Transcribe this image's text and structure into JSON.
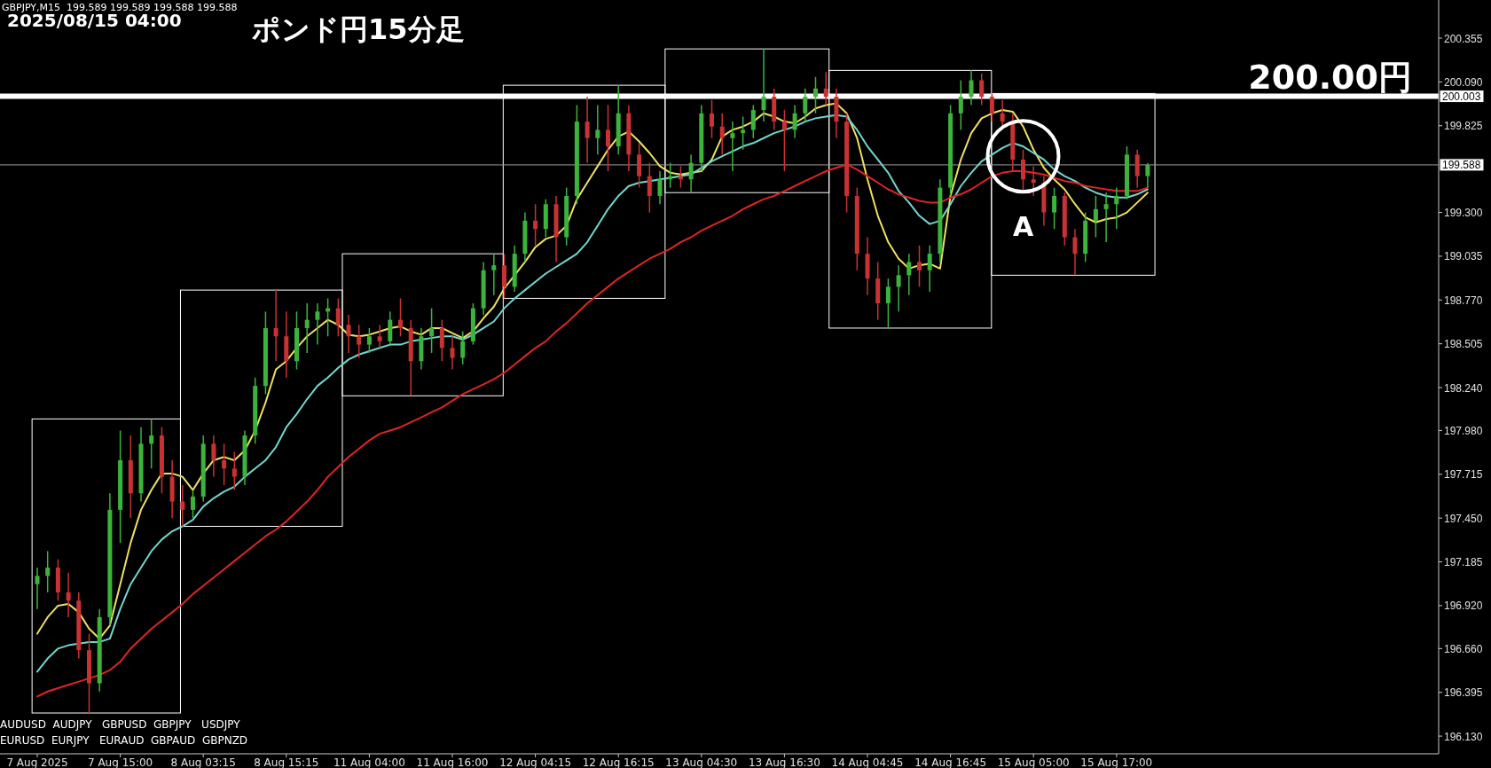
{
  "chart_data": {
    "type": "candlestick",
    "title": "ポンド円15分足",
    "categories": [
      "7 Aug 2025",
      null,
      null,
      null,
      null,
      null,
      null,
      null,
      "7 Aug 15:00",
      null,
      null,
      null,
      null,
      null,
      null,
      null,
      "8 Aug 03:15",
      null,
      null,
      null,
      null,
      null,
      null,
      null,
      "8 Aug 15:15",
      null,
      null,
      null,
      null,
      null,
      null,
      null,
      "11 Aug 04:00",
      null,
      null,
      null,
      null,
      null,
      null,
      null,
      "11 Aug 16:00",
      null,
      null,
      null,
      null,
      null,
      null,
      null,
      "12 Aug 04:15",
      null,
      null,
      null,
      null,
      null,
      null,
      null,
      "12 Aug 16:15",
      null,
      null,
      null,
      null,
      null,
      null,
      null,
      "13 Aug 04:30",
      null,
      null,
      null,
      null,
      null,
      null,
      null,
      "13 Aug 16:30",
      null,
      null,
      null,
      null,
      null,
      null,
      null,
      "14 Aug 04:45",
      null,
      null,
      null,
      null,
      null,
      null,
      null,
      "14 Aug 16:45",
      null,
      null,
      null,
      null,
      null,
      null,
      null,
      "15 Aug 05:00",
      null,
      null,
      null,
      null,
      null,
      null,
      null,
      "15 Aug 17:00",
      null,
      null,
      null
    ],
    "ohlc": [
      [
        197.05,
        197.15,
        196.9,
        197.1
      ],
      [
        197.1,
        197.25,
        197.0,
        197.15
      ],
      [
        197.15,
        197.2,
        196.95,
        197.0
      ],
      [
        197.0,
        197.12,
        196.85,
        196.95
      ],
      [
        196.95,
        197.0,
        196.6,
        196.65
      ],
      [
        196.65,
        196.75,
        196.27,
        196.45
      ],
      [
        196.45,
        196.9,
        196.4,
        196.85
      ],
      [
        196.85,
        197.6,
        196.8,
        197.5
      ],
      [
        197.5,
        197.98,
        197.3,
        197.8
      ],
      [
        197.8,
        197.95,
        197.45,
        197.6
      ],
      [
        197.6,
        198.0,
        197.55,
        197.9
      ],
      [
        197.9,
        198.05,
        197.75,
        197.95
      ],
      [
        197.95,
        198.0,
        197.6,
        197.7
      ],
      [
        197.7,
        197.8,
        197.45,
        197.55
      ],
      [
        197.55,
        197.65,
        197.4,
        197.5
      ],
      [
        197.5,
        197.62,
        197.45,
        197.58
      ],
      [
        197.58,
        197.95,
        197.55,
        197.9
      ],
      [
        197.9,
        197.95,
        197.7,
        197.8
      ],
      [
        197.8,
        197.9,
        197.65,
        197.75
      ],
      [
        197.75,
        197.85,
        197.62,
        197.7
      ],
      [
        197.7,
        197.98,
        197.65,
        197.95
      ],
      [
        197.95,
        198.3,
        197.9,
        198.25
      ],
      [
        198.25,
        198.7,
        198.2,
        198.6
      ],
      [
        198.6,
        198.83,
        198.4,
        198.55
      ],
      [
        198.55,
        198.7,
        198.3,
        198.4
      ],
      [
        198.4,
        198.7,
        198.35,
        198.6
      ],
      [
        198.6,
        198.75,
        198.45,
        198.65
      ],
      [
        198.65,
        198.75,
        198.5,
        198.7
      ],
      [
        198.7,
        198.78,
        198.55,
        198.72
      ],
      [
        198.72,
        198.78,
        198.55,
        198.62
      ],
      [
        198.62,
        198.68,
        198.45,
        198.55
      ],
      [
        198.55,
        198.62,
        198.42,
        198.5
      ],
      [
        198.5,
        198.6,
        198.45,
        198.55
      ],
      [
        198.55,
        198.62,
        198.48,
        198.52
      ],
      [
        198.52,
        198.7,
        198.5,
        198.65
      ],
      [
        198.65,
        198.78,
        198.55,
        198.6
      ],
      [
        198.6,
        198.65,
        198.19,
        198.4
      ],
      [
        198.4,
        198.6,
        198.35,
        198.55
      ],
      [
        198.55,
        198.72,
        198.45,
        198.6
      ],
      [
        198.6,
        198.65,
        198.4,
        198.48
      ],
      [
        198.48,
        198.55,
        198.35,
        198.42
      ],
      [
        198.42,
        198.58,
        198.38,
        198.52
      ],
      [
        198.52,
        198.75,
        198.5,
        198.72
      ],
      [
        198.72,
        199.0,
        198.68,
        198.95
      ],
      [
        198.95,
        199.05,
        198.8,
        198.98
      ],
      [
        198.98,
        199.05,
        198.78,
        198.85
      ],
      [
        198.85,
        199.1,
        198.82,
        199.05
      ],
      [
        199.05,
        199.3,
        199.0,
        199.25
      ],
      [
        199.25,
        199.35,
        199.1,
        199.2
      ],
      [
        199.2,
        199.38,
        199.15,
        199.35
      ],
      [
        199.35,
        199.4,
        199.0,
        199.15
      ],
      [
        199.15,
        199.45,
        199.1,
        199.4
      ],
      [
        199.4,
        199.95,
        199.35,
        199.85
      ],
      [
        199.85,
        200.0,
        199.6,
        199.75
      ],
      [
        199.75,
        199.95,
        199.65,
        199.8
      ],
      [
        199.8,
        199.95,
        199.55,
        199.7
      ],
      [
        199.7,
        200.07,
        199.65,
        199.9
      ],
      [
        199.9,
        199.95,
        199.55,
        199.65
      ],
      [
        199.65,
        199.72,
        199.45,
        199.52
      ],
      [
        199.52,
        199.6,
        199.3,
        199.4
      ],
      [
        199.4,
        199.55,
        199.35,
        199.5
      ],
      [
        199.5,
        199.6,
        199.45,
        199.52
      ],
      [
        199.52,
        199.58,
        199.45,
        199.5
      ],
      [
        199.5,
        199.65,
        199.42,
        199.6
      ],
      [
        199.6,
        199.95,
        199.55,
        199.9
      ],
      [
        199.9,
        199.98,
        199.75,
        199.82
      ],
      [
        199.82,
        199.9,
        199.65,
        199.75
      ],
      [
        199.75,
        199.85,
        199.55,
        199.78
      ],
      [
        199.78,
        199.88,
        199.68,
        199.8
      ],
      [
        199.8,
        199.95,
        199.75,
        199.92
      ],
      [
        199.92,
        200.29,
        199.85,
        200.0
      ],
      [
        200.0,
        200.05,
        199.8,
        199.85
      ],
      [
        199.85,
        199.92,
        199.55,
        199.8
      ],
      [
        199.8,
        199.95,
        199.75,
        199.9
      ],
      [
        199.9,
        200.05,
        199.85,
        200.0
      ],
      [
        200.0,
        200.12,
        199.9,
        200.05
      ],
      [
        200.05,
        200.15,
        199.95,
        200.0
      ],
      [
        200.0,
        200.05,
        199.75,
        199.85
      ],
      [
        199.85,
        199.9,
        199.3,
        199.4
      ],
      [
        199.4,
        199.45,
        198.95,
        199.05
      ],
      [
        199.05,
        199.15,
        198.8,
        198.9
      ],
      [
        198.9,
        199.0,
        198.65,
        198.75
      ],
      [
        198.75,
        198.9,
        198.6,
        198.85
      ],
      [
        198.85,
        198.98,
        198.7,
        198.92
      ],
      [
        198.92,
        199.05,
        198.8,
        199.0
      ],
      [
        199.0,
        199.1,
        198.85,
        198.95
      ],
      [
        198.95,
        199.1,
        198.82,
        199.05
      ],
      [
        199.05,
        199.5,
        199.0,
        199.45
      ],
      [
        199.45,
        199.95,
        199.4,
        199.9
      ],
      [
        199.9,
        200.1,
        199.8,
        200.0
      ],
      [
        200.0,
        200.16,
        199.95,
        200.1
      ],
      [
        200.1,
        200.14,
        199.95,
        200.0
      ],
      [
        200.0,
        200.02,
        199.85,
        199.9
      ],
      [
        199.9,
        199.98,
        199.8,
        199.85
      ],
      [
        199.85,
        199.9,
        199.55,
        199.62
      ],
      [
        199.62,
        199.68,
        199.42,
        199.5
      ],
      [
        199.5,
        199.58,
        199.4,
        199.48
      ],
      [
        199.48,
        199.52,
        199.22,
        199.3
      ],
      [
        199.3,
        199.45,
        199.2,
        199.4
      ],
      [
        199.4,
        199.42,
        199.1,
        199.15
      ],
      [
        199.15,
        199.2,
        198.92,
        199.05
      ],
      [
        199.05,
        199.3,
        199.0,
        199.25
      ],
      [
        199.25,
        199.4,
        199.15,
        199.32
      ],
      [
        199.32,
        199.42,
        199.12,
        199.35
      ],
      [
        199.35,
        199.45,
        199.2,
        199.4
      ],
      [
        199.4,
        199.7,
        199.38,
        199.65
      ],
      [
        199.65,
        199.68,
        199.45,
        199.52
      ],
      [
        199.52,
        199.6,
        199.45,
        199.588
      ]
    ],
    "colors": [
      "#3cb43c",
      "#3cb43c",
      "#c83232",
      "#c83232",
      "#c83232",
      "#c83232",
      "#3cb43c",
      "#3cb43c",
      "#3cb43c",
      "#c83232",
      "#3cb43c",
      "#3cb43c",
      "#c83232",
      "#c83232",
      "#c83232",
      "#3cb43c",
      "#3cb43c",
      "#c83232",
      "#c83232",
      "#c83232",
      "#3cb43c",
      "#3cb43c",
      "#3cb43c",
      "#c83232",
      "#c83232",
      "#3cb43c",
      "#3cb43c",
      "#3cb43c",
      "#3cb43c",
      "#c83232",
      "#c83232",
      "#c83232",
      "#3cb43c",
      "#c83232",
      "#3cb43c",
      "#c83232",
      "#c83232",
      "#3cb43c",
      "#3cb43c",
      "#c83232",
      "#c83232",
      "#3cb43c",
      "#3cb43c",
      "#3cb43c",
      "#3cb43c",
      "#c83232",
      "#3cb43c",
      "#3cb43c",
      "#c83232",
      "#3cb43c",
      "#c83232",
      "#3cb43c",
      "#3cb43c",
      "#c83232",
      "#3cb43c",
      "#c83232",
      "#3cb43c",
      "#c83232",
      "#c83232",
      "#c83232",
      "#3cb43c",
      "#3cb43c",
      "#c83232",
      "#3cb43c",
      "#3cb43c",
      "#c83232",
      "#c83232",
      "#3cb43c",
      "#3cb43c",
      "#3cb43c",
      "#3cb43c",
      "#c83232",
      "#c83232",
      "#3cb43c",
      "#3cb43c",
      "#3cb43c",
      "#c83232",
      "#c83232",
      "#c83232",
      "#c83232",
      "#c83232",
      "#c83232",
      "#3cb43c",
      "#3cb43c",
      "#3cb43c",
      "#c83232",
      "#3cb43c",
      "#3cb43c",
      "#3cb43c",
      "#3cb43c",
      "#3cb43c",
      "#c83232",
      "#c83232",
      "#c83232",
      "#c83232",
      "#c83232",
      "#c83232",
      "#c83232",
      "#3cb43c",
      "#c83232",
      "#c83232",
      "#3cb43c",
      "#3cb43c",
      "#3cb43c",
      "#3cb43c",
      "#3cb43c",
      "#c83232",
      "#3cb43c"
    ],
    "series": [
      {
        "type": "line",
        "color": "#f0e060",
        "values": [
          196.75,
          196.85,
          196.92,
          196.93,
          196.88,
          196.78,
          196.72,
          196.8,
          197.05,
          197.3,
          197.5,
          197.62,
          197.72,
          197.72,
          197.7,
          197.62,
          197.72,
          197.8,
          197.82,
          197.8,
          197.86,
          197.98,
          198.15,
          198.35,
          198.4,
          198.48,
          198.55,
          198.6,
          198.65,
          198.62,
          198.56,
          198.55,
          198.56,
          198.58,
          198.6,
          198.61,
          198.58,
          198.56,
          198.6,
          198.6,
          198.57,
          198.54,
          198.58,
          198.66,
          198.73,
          198.84,
          198.92,
          199.0,
          199.09,
          199.14,
          199.16,
          199.22,
          199.38,
          199.48,
          199.58,
          199.68,
          199.76,
          199.79,
          199.73,
          199.66,
          199.58,
          199.54,
          199.53,
          199.54,
          199.55,
          199.62,
          199.76,
          199.8,
          199.82,
          199.85,
          199.9,
          199.88,
          199.85,
          199.84,
          199.88,
          199.93,
          199.95,
          199.96,
          199.9,
          199.75,
          199.5,
          199.28,
          199.12,
          199.02,
          198.96,
          198.98,
          198.99,
          198.96,
          199.4,
          199.62,
          199.78,
          199.87,
          199.9,
          199.92,
          199.91,
          199.82,
          199.68,
          199.57,
          199.5,
          199.44,
          199.35,
          199.27,
          199.24,
          199.26,
          199.27,
          199.3,
          199.36,
          199.42
        ]
      },
      {
        "type": "line",
        "color": "#70d8d0",
        "values": [
          196.52,
          196.6,
          196.66,
          196.68,
          196.69,
          196.7,
          196.7,
          196.72,
          196.9,
          197.05,
          197.15,
          197.25,
          197.32,
          197.37,
          197.4,
          197.44,
          197.52,
          197.57,
          197.61,
          197.64,
          197.7,
          197.75,
          197.8,
          197.88,
          198.0,
          198.08,
          198.17,
          198.25,
          198.3,
          198.36,
          198.41,
          198.44,
          198.46,
          198.48,
          198.5,
          198.5,
          198.52,
          198.53,
          198.54,
          198.55,
          198.55,
          198.53,
          198.56,
          198.6,
          198.64,
          198.72,
          198.78,
          198.83,
          198.88,
          198.93,
          198.97,
          199.01,
          199.05,
          199.12,
          199.22,
          199.32,
          199.4,
          199.46,
          199.48,
          199.49,
          199.5,
          199.51,
          199.52,
          199.53,
          199.57,
          199.61,
          199.64,
          199.67,
          199.7,
          199.72,
          199.75,
          199.78,
          199.8,
          199.82,
          199.85,
          199.87,
          199.88,
          199.89,
          199.88,
          199.8,
          199.7,
          199.62,
          199.54,
          199.43,
          199.36,
          199.28,
          199.23,
          199.25,
          199.35,
          199.46,
          199.54,
          199.61,
          199.65,
          199.69,
          199.72,
          199.7,
          199.66,
          199.62,
          199.56,
          199.52,
          199.49,
          199.45,
          199.42,
          199.4,
          199.39,
          199.39,
          199.41,
          199.44
        ]
      },
      {
        "type": "line",
        "color": "#e02424",
        "values": [
          196.37,
          196.4,
          196.42,
          196.44,
          196.46,
          196.48,
          196.5,
          196.53,
          196.58,
          196.66,
          196.72,
          196.78,
          196.83,
          196.88,
          196.93,
          196.99,
          197.04,
          197.09,
          197.14,
          197.19,
          197.24,
          197.29,
          197.34,
          197.38,
          197.43,
          197.49,
          197.55,
          197.62,
          197.7,
          197.76,
          197.82,
          197.87,
          197.92,
          197.96,
          197.98,
          198.0,
          198.03,
          198.06,
          198.09,
          198.12,
          198.16,
          198.2,
          198.23,
          198.26,
          198.29,
          198.33,
          198.38,
          198.43,
          198.48,
          198.52,
          198.58,
          198.63,
          198.69,
          198.75,
          198.8,
          198.85,
          198.9,
          198.94,
          198.98,
          199.02,
          199.05,
          199.08,
          199.12,
          199.15,
          199.19,
          199.22,
          199.25,
          199.28,
          199.32,
          199.35,
          199.38,
          199.4,
          199.43,
          199.46,
          199.49,
          199.52,
          199.55,
          199.57,
          199.59,
          199.56,
          199.52,
          199.48,
          199.44,
          199.41,
          199.39,
          199.37,
          199.36,
          199.36,
          199.39,
          199.41,
          199.44,
          199.48,
          199.52,
          199.54,
          199.55,
          199.55,
          199.54,
          199.53,
          199.51,
          199.49,
          199.48,
          199.46,
          199.45,
          199.44,
          199.43,
          199.43,
          199.43,
          199.45
        ]
      }
    ],
    "ylim": [
      196.023,
      200.586
    ],
    "yticks": [
      {
        "value": 196.13,
        "label": "196.130"
      },
      196.395,
      {
        "value": 196.66,
        "label": "196.660"
      },
      {
        "value": 196.92,
        "label": "196.920"
      },
      197.185,
      {
        "value": 197.45,
        "label": "197.450"
      },
      197.715,
      {
        "value": 197.98,
        "label": "197.980"
      },
      {
        "value": 198.24,
        "label": "198.240"
      },
      198.505,
      {
        "value": 198.77,
        "label": "198.770"
      },
      199.035,
      {
        "value": 199.3,
        "label": "199.300"
      },
      199.825,
      {
        "value": 200.09,
        "label": "200.090"
      },
      200.355
    ],
    "ref_lines": [
      {
        "axis": "y",
        "value": 200.003,
        "label": "200.003",
        "color": "#ffffff"
      },
      {
        "axis": "y",
        "value": 199.588,
        "label": "199.588",
        "color": "#9a9a9a"
      }
    ],
    "annotations": [
      "GBPJPY,M15  199.589 199.589 199.588 199.588",
      "2025/08/15 04:00",
      "200.00円",
      "A",
      "AUDUSD  AUDJPY   GBPUSD  GBPJPY   USDJPY",
      "EURUSD  EURJPY   EURAUD  GBPAUD  GBPNZD"
    ]
  }
}
